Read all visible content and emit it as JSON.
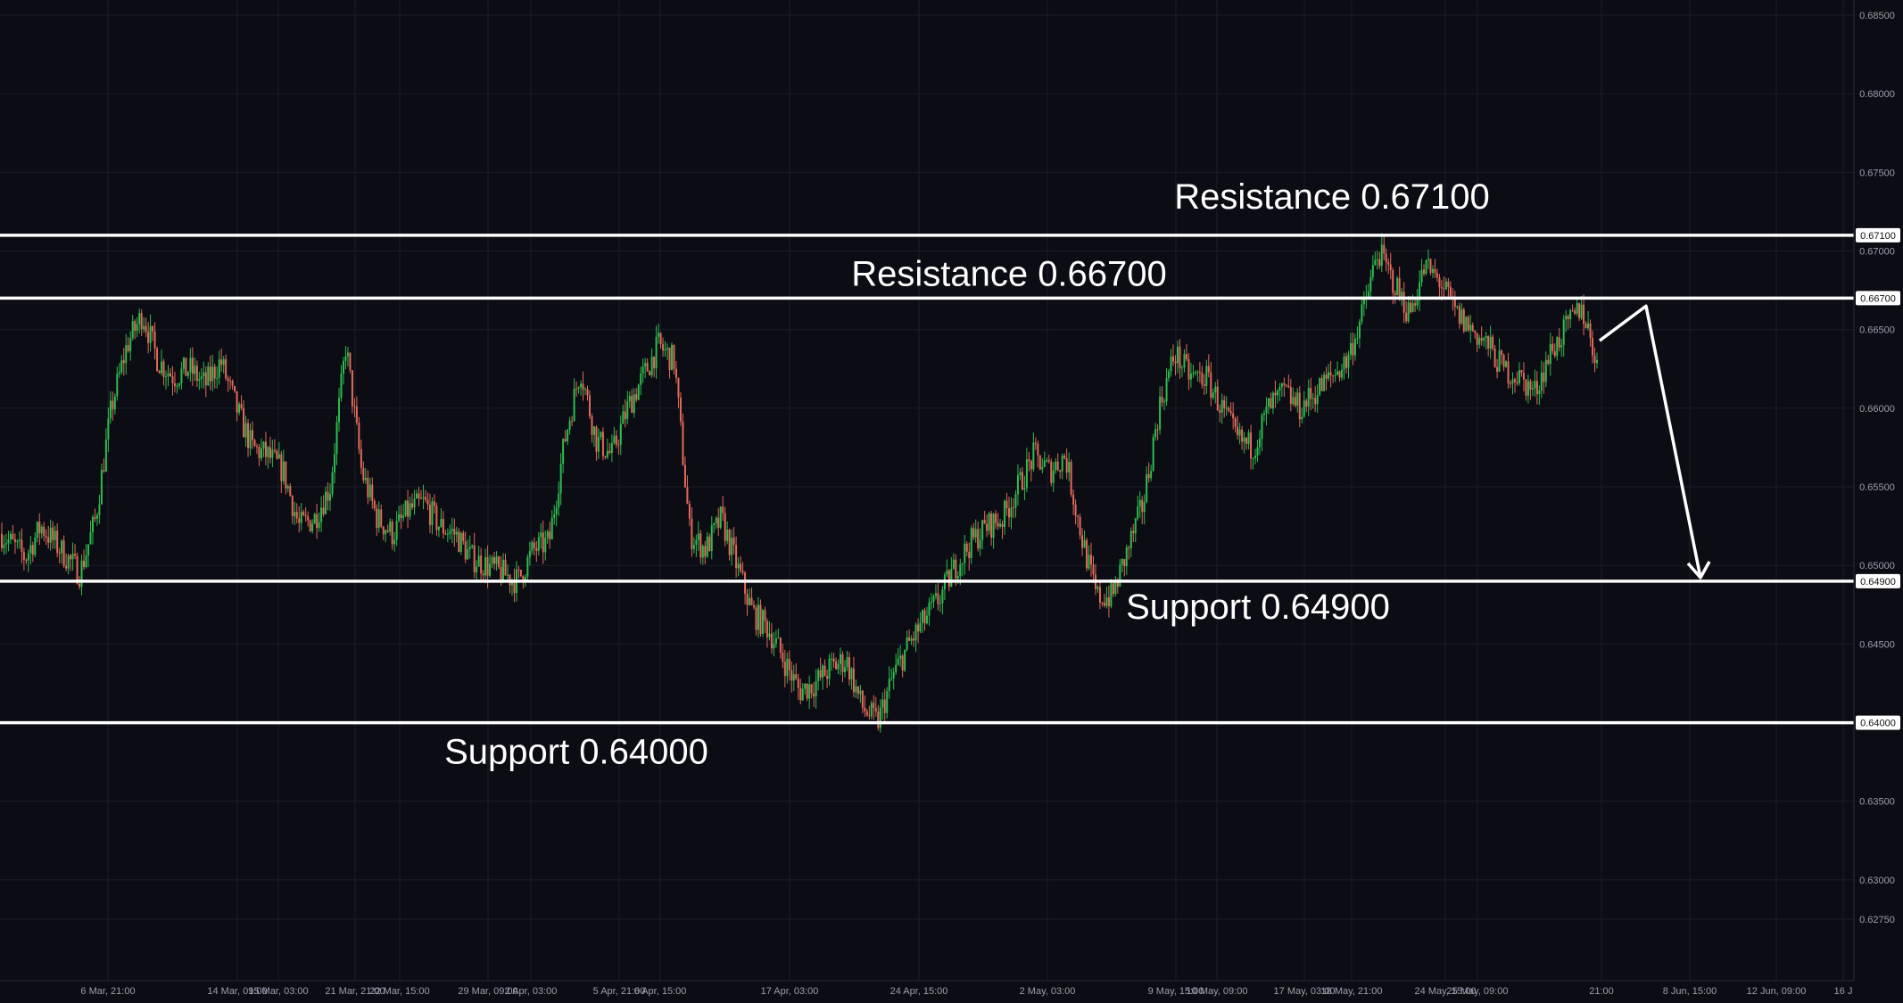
{
  "chart_data": {
    "type": "candlestick",
    "title": "",
    "xlabel": "",
    "ylabel": "",
    "ylim": [
      0.6725,
      0.685
    ],
    "y_axis_side": "right",
    "y_ticks": [
      0.685,
      0.68,
      0.675,
      0.671,
      0.67,
      0.667,
      0.665,
      0.66,
      0.655,
      0.65,
      0.649,
      0.645,
      0.64,
      0.635,
      0.63,
      0.6275
    ],
    "y_tick_labels": [
      "0.68500",
      "0.68000",
      "0.67500",
      "0.67100",
      "0.67000",
      "0.66700",
      "0.66500",
      "0.66000",
      "0.65500",
      "0.65000",
      "0.64900",
      "0.64500",
      "0.64000",
      "0.63500",
      "0.63000",
      "0.62750"
    ],
    "x_tick_labels": [
      "6 Mar, 21:00",
      "14 Mar, 09:00",
      "15 Mar, 03:00",
      "21 Mar, 21:00",
      "22 Mar, 15:00",
      "29 Mar, 09:00",
      "2 Apr, 03:00",
      "5 Apr, 21:00",
      "6 Apr, 15:00",
      "17 Apr, 03:00",
      "24 Apr, 15:00",
      "2 May, 03:00",
      "9 May, 15:00",
      "10 May, 09:00",
      "17 May, 03:00",
      "18 May, 21:00",
      "24 May, 15:00",
      "25 May, 09:00",
      "21:00",
      "8 Jun, 15:00",
      "12 Jun, 09:00",
      "16 J"
    ],
    "grid": true,
    "candle_colors": {
      "up": "#26a69a",
      "down": "#ef5350",
      "up_bright": "#2dbd4e",
      "down_bright": "#e36a5a"
    },
    "price_path": {
      "x_index": [
        0,
        6,
        10,
        15,
        20,
        24,
        28,
        32,
        36,
        40,
        44,
        48,
        52,
        56,
        60,
        64,
        68,
        72,
        76,
        80,
        84,
        88,
        92,
        96,
        100,
        104,
        108,
        112,
        116,
        120,
        124,
        128,
        132,
        136,
        140,
        144,
        148,
        152,
        156,
        160,
        164,
        168,
        172,
        176,
        180,
        184,
        188,
        192,
        196,
        200,
        204,
        208,
        212,
        216,
        220,
        224,
        228,
        232,
        236,
        240,
        244,
        248,
        252,
        256,
        260,
        264,
        268,
        272,
        276,
        280,
        284,
        288,
        292,
        296,
        300,
        304,
        308,
        312,
        316,
        320,
        324,
        328,
        332,
        336,
        340,
        344,
        348,
        352,
        356,
        360,
        364,
        368,
        372,
        376,
        380,
        384,
        388,
        392,
        396,
        400,
        404,
        408
      ],
      "close": [
        0.652,
        0.6505,
        0.6525,
        0.651,
        0.6495,
        0.653,
        0.66,
        0.664,
        0.666,
        0.663,
        0.662,
        0.6625,
        0.6615,
        0.663,
        0.66,
        0.6575,
        0.657,
        0.656,
        0.6525,
        0.653,
        0.655,
        0.664,
        0.656,
        0.653,
        0.652,
        0.6535,
        0.654,
        0.6525,
        0.652,
        0.6505,
        0.65,
        0.6495,
        0.649,
        0.651,
        0.6515,
        0.658,
        0.6625,
        0.658,
        0.657,
        0.66,
        0.662,
        0.664,
        0.663,
        0.652,
        0.651,
        0.653,
        0.65,
        0.647,
        0.646,
        0.644,
        0.642,
        0.6425,
        0.6435,
        0.644,
        0.641,
        0.64,
        0.643,
        0.645,
        0.6465,
        0.648,
        0.65,
        0.6515,
        0.6525,
        0.653,
        0.655,
        0.657,
        0.656,
        0.657,
        0.652,
        0.648,
        0.648,
        0.651,
        0.654,
        0.66,
        0.6635,
        0.662,
        0.662,
        0.66,
        0.658,
        0.6575,
        0.66,
        0.661,
        0.66,
        0.661,
        0.662,
        0.663,
        0.666,
        0.67,
        0.668,
        0.666,
        0.669,
        0.668,
        0.666,
        0.665,
        0.664,
        0.6625,
        0.662,
        0.661,
        0.6635,
        0.665,
        0.6665,
        0.663
      ]
    },
    "horizontal_levels": [
      {
        "value": 0.671,
        "tag": "0.67100"
      },
      {
        "value": 0.667,
        "tag": "0.66700"
      },
      {
        "value": 0.649,
        "tag": "0.64900"
      },
      {
        "value": 0.64,
        "tag": "0.64000"
      }
    ],
    "annotations": [
      {
        "text": "Resistance 0.67100",
        "value": 0.671
      },
      {
        "text": "Resistance 0.66700",
        "value": 0.667
      },
      {
        "text": "Support 0.64900",
        "value": 0.649
      },
      {
        "text": "Support 0.64000",
        "value": 0.64
      }
    ],
    "projection": {
      "from": 0.6643,
      "peak": 0.6665,
      "target": 0.649
    }
  }
}
